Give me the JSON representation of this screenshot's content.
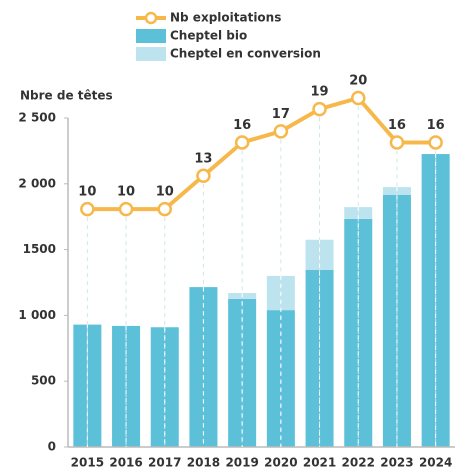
{
  "chart_data": {
    "type": "bar",
    "stacked": true,
    "y_label": "Nbre de têtes",
    "categories": [
      "2015",
      "2016",
      "2017",
      "2018",
      "2019",
      "2020",
      "2021",
      "2022",
      "2023",
      "2024"
    ],
    "series": [
      {
        "name": "Nb exploitations",
        "type": "line",
        "axis": "y2",
        "color": "#f7b84b",
        "values": [
          10,
          10,
          10,
          13,
          16,
          17,
          19,
          20,
          16,
          16
        ]
      },
      {
        "name": "Cheptel bio",
        "type": "bar",
        "color": "#5bc0d8",
        "values": [
          930,
          920,
          910,
          1215,
          1125,
          1040,
          1345,
          1733,
          1915,
          2226
        ]
      },
      {
        "name": "Cheptel en conversion",
        "type": "bar",
        "color": "#bde3ef",
        "values": [
          0,
          0,
          0,
          0,
          45,
          260,
          230,
          90,
          60,
          0
        ]
      }
    ],
    "ylim": [
      0,
      2500
    ],
    "yticks": [
      0,
      500,
      {
        "value": 1000,
        "label": "1 000"
      },
      {
        "value": 1500,
        "label": "1500"
      },
      {
        "value": 2000,
        "label": "2 000"
      },
      {
        "value": 2500,
        "label": "2 500"
      }
    ],
    "y2lim": [
      -11.4,
      18.2
    ]
  }
}
